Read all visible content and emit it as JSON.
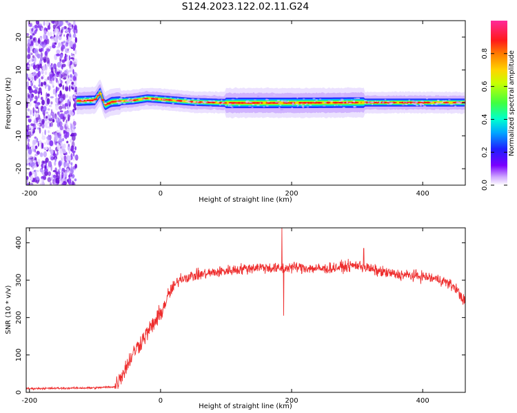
{
  "title": "S124.2023.122.02.11.G24",
  "chart_data": [
    {
      "type": "heatmap",
      "xlabel": "Height of straight line (km)",
      "ylabel": "Frequency (Hz)",
      "xlim": [
        -205,
        465
      ],
      "ylim": [
        -25,
        25
      ],
      "xticks": [
        -200,
        0,
        200,
        400
      ],
      "yticks": [
        -20,
        -10,
        0,
        10,
        20
      ],
      "colorbar": {
        "label": "Normalized spectral amplitude",
        "range": [
          0,
          1
        ],
        "ticks": [
          0.0,
          0.2,
          0.4,
          0.6,
          0.8
        ],
        "tick_labels": [
          "0.0",
          "0.2",
          "0.4",
          "0.6",
          "0.8"
        ],
        "colormap": "rainbow (white-purple-blue-cyan-green-yellow-red-magenta)"
      },
      "features": {
        "noise_region_x": [
          -205,
          -128
        ],
        "signal_start_x": -128,
        "signal_center_hz": [
          [
            -125,
            0.6
          ],
          [
            -100,
            0.8
          ],
          [
            -92,
            3.2
          ],
          [
            -85,
            -0.8
          ],
          [
            -75,
            0.3
          ],
          [
            -40,
            0.8
          ],
          [
            -20,
            1.4
          ],
          [
            0,
            1.1
          ],
          [
            50,
            0.3
          ],
          [
            100,
            0.0
          ],
          [
            200,
            0.0
          ],
          [
            300,
            0.1
          ],
          [
            465,
            0.1
          ]
        ],
        "broad_band_x": [
          100,
          310
        ]
      },
      "grid": false
    },
    {
      "type": "line",
      "xlabel": "Height of straight line (km)",
      "ylabel": "SNR (10 * v/v)",
      "xlim": [
        -205,
        465
      ],
      "ylim": [
        0,
        440
      ],
      "xticks": [
        -200,
        0,
        200,
        400
      ],
      "yticks": [
        0,
        100,
        200,
        300,
        400
      ],
      "color": "#ee2d2d",
      "series_envelope": {
        "x": [
          -205,
          -100,
          -70,
          -55,
          -40,
          -20,
          0,
          15,
          30,
          60,
          100,
          150,
          185,
          200,
          250,
          300,
          330,
          360,
          400,
          430,
          450,
          465
        ],
        "y": [
          10,
          12,
          15,
          60,
          110,
          160,
          210,
          270,
          305,
          315,
          325,
          335,
          330,
          335,
          330,
          340,
          325,
          315,
          310,
          300,
          280,
          240
        ]
      },
      "spikes": [
        {
          "x": 185,
          "y": 440
        },
        {
          "x": 188,
          "y": 205
        },
        {
          "x": 310,
          "y": 385
        }
      ],
      "grid": false
    }
  ]
}
